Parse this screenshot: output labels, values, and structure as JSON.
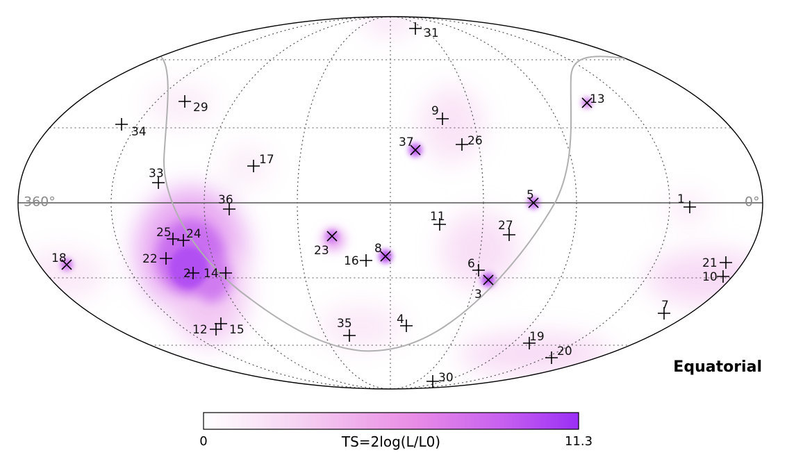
{
  "frame": "Equatorial",
  "ra_labels": {
    "left": "360°",
    "right": "0°"
  },
  "colorbar": {
    "min": "0",
    "max": "11.3",
    "label": "TS=2log(L/L0)",
    "colors": [
      "#ffffff",
      "#f3c6ee",
      "#e98ee6",
      "#c562ef",
      "#9b30f5"
    ]
  },
  "sources": [
    {
      "id": "1",
      "marker": "plus",
      "hot": 0.05
    },
    {
      "id": "2",
      "marker": "plus",
      "hot": 0.95
    },
    {
      "id": "3",
      "marker": "cross",
      "hot": 0.85
    },
    {
      "id": "4",
      "marker": "plus",
      "hot": 0.1
    },
    {
      "id": "5",
      "marker": "cross",
      "hot": 0.7
    },
    {
      "id": "6",
      "marker": "plus",
      "hot": 0.15
    },
    {
      "id": "7",
      "marker": "plus",
      "hot": 0.15
    },
    {
      "id": "8",
      "marker": "cross",
      "hot": 0.85
    },
    {
      "id": "9",
      "marker": "plus",
      "hot": 0.05
    },
    {
      "id": "10",
      "marker": "plus",
      "hot": 0.15
    },
    {
      "id": "11",
      "marker": "plus",
      "hot": 0.0
    },
    {
      "id": "12",
      "marker": "plus",
      "hot": 0.2
    },
    {
      "id": "13",
      "marker": "cross",
      "hot": 0.55
    },
    {
      "id": "14",
      "marker": "plus",
      "hot": 0.6
    },
    {
      "id": "15",
      "marker": "plus",
      "hot": 0.2
    },
    {
      "id": "16",
      "marker": "plus",
      "hot": 0.1
    },
    {
      "id": "17",
      "marker": "plus",
      "hot": 0.05
    },
    {
      "id": "18",
      "marker": "cross",
      "hot": 0.6
    },
    {
      "id": "19",
      "marker": "plus",
      "hot": 0.1
    },
    {
      "id": "20",
      "marker": "plus",
      "hot": 0.1
    },
    {
      "id": "21",
      "marker": "plus",
      "hot": 0.1
    },
    {
      "id": "22",
      "marker": "plus",
      "hot": 0.4
    },
    {
      "id": "23",
      "marker": "cross",
      "hot": 0.6
    },
    {
      "id": "24",
      "marker": "plus",
      "hot": 0.5
    },
    {
      "id": "25",
      "marker": "plus",
      "hot": 0.5
    },
    {
      "id": "26",
      "marker": "plus",
      "hot": 0.0
    },
    {
      "id": "27",
      "marker": "plus",
      "hot": 0.05
    },
    {
      "id": "29",
      "marker": "plus",
      "hot": 0.05
    },
    {
      "id": "30",
      "marker": "plus",
      "hot": 0.05
    },
    {
      "id": "31",
      "marker": "plus",
      "hot": 0.05
    },
    {
      "id": "33",
      "marker": "plus",
      "hot": 0.05
    },
    {
      "id": "34",
      "marker": "plus",
      "hot": 0.0
    },
    {
      "id": "35",
      "marker": "plus",
      "hot": 0.05
    },
    {
      "id": "36",
      "marker": "plus",
      "hot": 0.3
    },
    {
      "id": "37",
      "marker": "cross",
      "hot": 0.75
    }
  ]
}
